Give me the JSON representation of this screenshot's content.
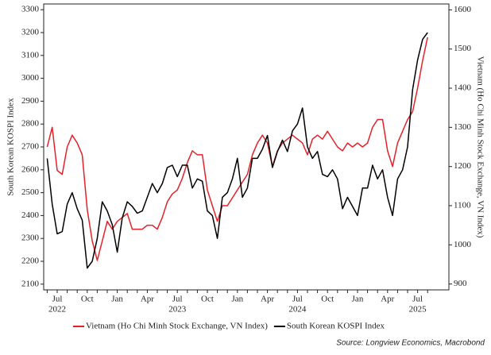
{
  "chart_data": {
    "type": "line",
    "y_label": "South Korean KOSPI Index",
    "y2_label": "Vietnam (Ho Chi Minh Stock Exchange, VN Index)",
    "source": "Source: Longview Economics, Macrobond",
    "categories": [
      null,
      null,
      "Jul",
      null,
      null,
      null,
      null,
      null,
      "Oct",
      null,
      null,
      null,
      null,
      null,
      "Jan",
      null,
      null,
      null,
      null,
      null,
      "Apr",
      null,
      null,
      null,
      null,
      null,
      "Jul",
      null,
      null,
      null,
      null,
      null,
      "Oct",
      null,
      null,
      null,
      null,
      null,
      "Jan",
      null,
      null,
      null,
      null,
      null,
      "Apr",
      null,
      null,
      null,
      null,
      null,
      "Jul",
      null,
      null,
      null,
      null,
      null,
      "Oct",
      null,
      null,
      null,
      null,
      null,
      "Jan",
      null,
      null,
      null,
      null,
      null,
      "Apr",
      null,
      null,
      null,
      null,
      null,
      "Jul",
      null,
      null
    ],
    "category_years": [
      null,
      null,
      "2022",
      null,
      null,
      null,
      null,
      null,
      null,
      null,
      null,
      null,
      null,
      null,
      null,
      null,
      null,
      null,
      null,
      null,
      null,
      null,
      null,
      null,
      null,
      null,
      "2023",
      null,
      null,
      null,
      null,
      null,
      null,
      null,
      null,
      null,
      null,
      null,
      null,
      null,
      null,
      null,
      null,
      null,
      null,
      null,
      null,
      null,
      null,
      null,
      "2024",
      null,
      null,
      null,
      null,
      null,
      null,
      null,
      null,
      null,
      null,
      null,
      null,
      null,
      null,
      null,
      null,
      null,
      null,
      null,
      null,
      null,
      null,
      null,
      "2025",
      null,
      null
    ],
    "series": [
      {
        "name": "Vietnam (Ho Chi Minh Stock Exchange, VN Index)",
        "color": "#e8202a",
        "axis": "y2",
        "values": [
          1250,
          1300,
          1190,
          1180,
          1250,
          1280,
          1260,
          1230,
          1090,
          1010,
          960,
          1010,
          1060,
          1040,
          1060,
          1070,
          1080,
          1040,
          1040,
          1040,
          1050,
          1050,
          1040,
          1070,
          1110,
          1130,
          1140,
          1170,
          1210,
          1240,
          1230,
          1230,
          1140,
          1100,
          1060,
          1100,
          1100,
          1120,
          1140,
          1160,
          1180,
          1230,
          1260,
          1280,
          1260,
          1200,
          1240,
          1260,
          1270,
          1280,
          1270,
          1260,
          1230,
          1270,
          1280,
          1270,
          1290,
          1270,
          1250,
          1240,
          1260,
          1250,
          1260,
          1250,
          1260,
          1300,
          1320,
          1320,
          1240,
          1200,
          1260,
          1290,
          1320,
          1340,
          1400,
          1470,
          1530
        ]
      },
      {
        "name": "South Korean KOSPI Index",
        "color": "#000000",
        "values": [
          2650,
          2450,
          2320,
          2330,
          2450,
          2500,
          2430,
          2380,
          2170,
          2200,
          2300,
          2460,
          2420,
          2360,
          2240,
          2390,
          2460,
          2440,
          2410,
          2420,
          2480,
          2540,
          2500,
          2540,
          2610,
          2620,
          2570,
          2620,
          2620,
          2520,
          2560,
          2550,
          2420,
          2400,
          2300,
          2480,
          2500,
          2560,
          2650,
          2480,
          2520,
          2650,
          2650,
          2690,
          2750,
          2610,
          2680,
          2730,
          2680,
          2770,
          2800,
          2870,
          2700,
          2650,
          2680,
          2580,
          2570,
          2600,
          2560,
          2430,
          2480,
          2440,
          2400,
          2520,
          2520,
          2620,
          2560,
          2600,
          2480,
          2400,
          2560,
          2600,
          2700,
          2950,
          3080,
          3170,
          3200
        ]
      }
    ],
    "ylim": [
      2075,
      3325
    ],
    "yticks": [
      2100,
      2200,
      2300,
      2400,
      2500,
      2600,
      2700,
      2800,
      2900,
      3000,
      3100,
      3200,
      3300
    ],
    "y2lim": [
      885,
      1615
    ],
    "y2ticks": [
      900,
      1000,
      1100,
      1200,
      1300,
      1400,
      1500,
      1600
    ],
    "grid": false
  }
}
